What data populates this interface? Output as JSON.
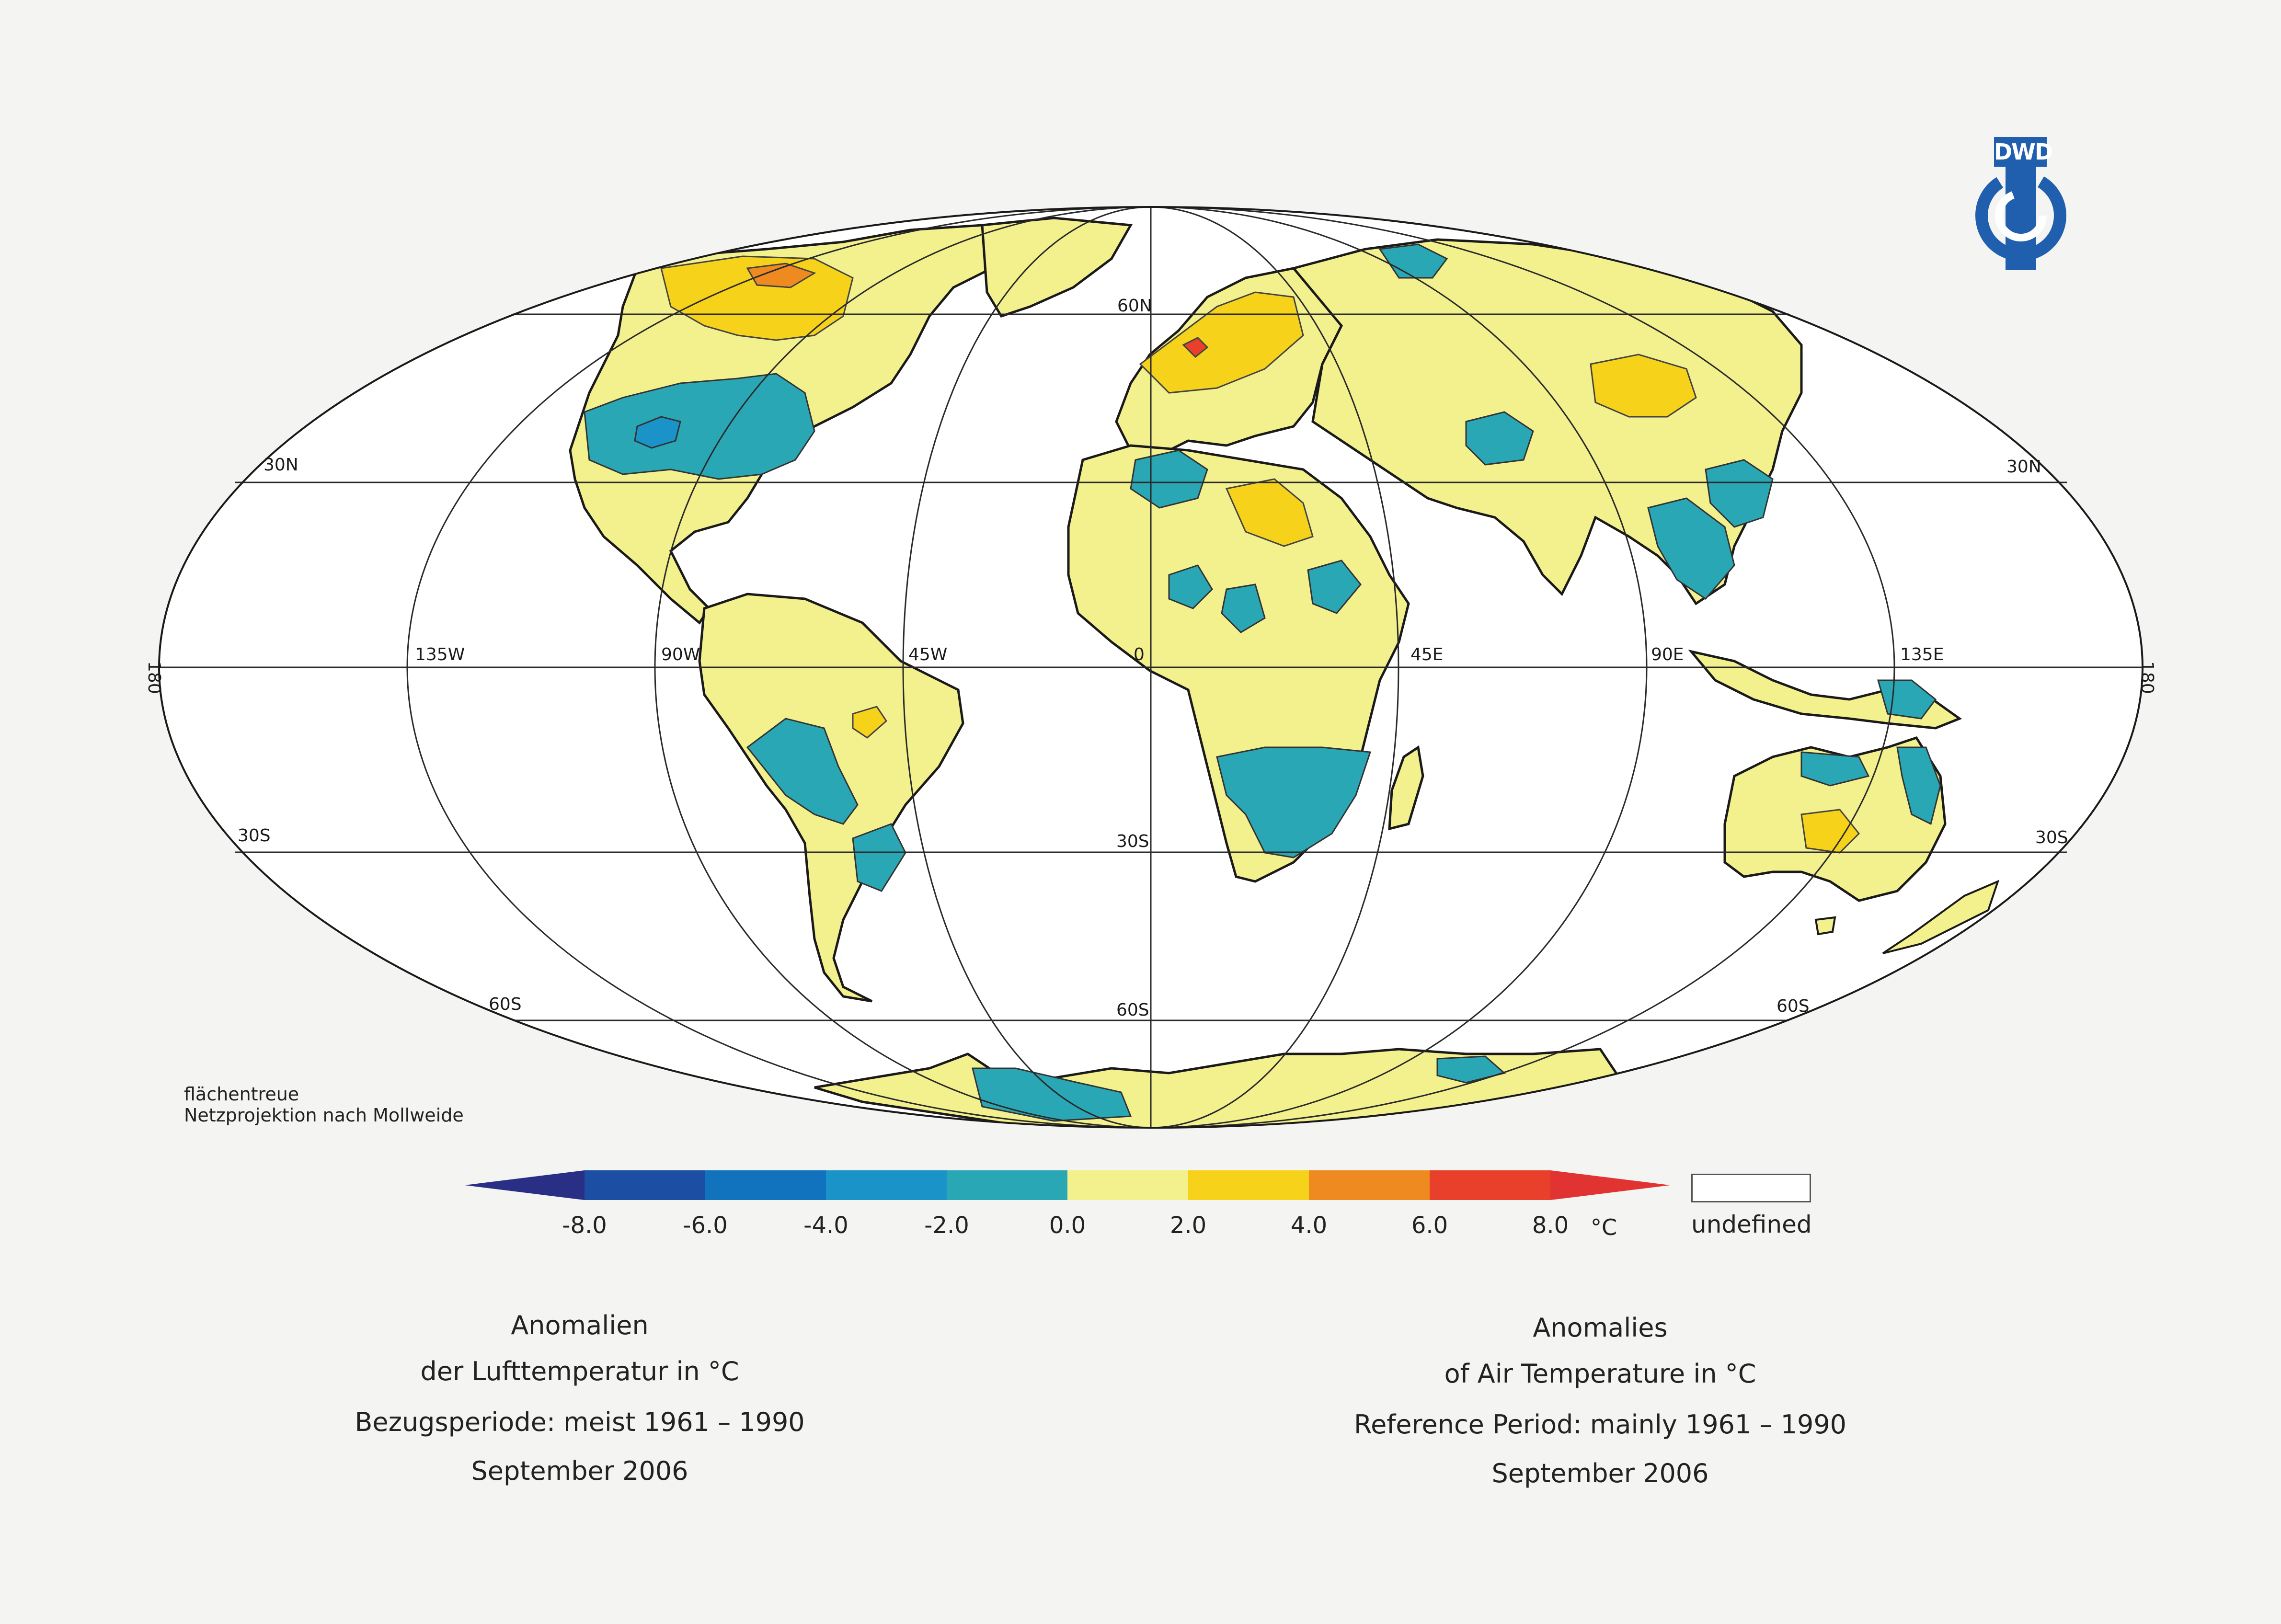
{
  "logo": {
    "text": "DWD",
    "color": "#1f5fae"
  },
  "projection_note": {
    "line1": "flächentreue",
    "line2": "Netzprojektion nach Mollweide"
  },
  "graticule_labels": {
    "lon_180_left": "180",
    "lon_135W": "135W",
    "lon_90W": "90W",
    "lon_45W": "45W",
    "lon_0": "0",
    "lon_45E": "45E",
    "lon_90E": "90E",
    "lon_135E": "135E",
    "lon_180_right": "180",
    "lat_60N": "60N",
    "lat_30N_left": "30N",
    "lat_30N_right": "30N",
    "lat_30S_left": "30S",
    "lat_30S_mid": "30S",
    "lat_30S_right": "30S",
    "lat_60S_left": "60S",
    "lat_60S_mid": "60S",
    "lat_60S_right": "60S"
  },
  "legend": {
    "ticks": [
      "-8.0",
      "-6.0",
      "-4.0",
      "-2.0",
      "0.0",
      "2.0",
      "4.0",
      "6.0",
      "8.0"
    ],
    "unit": "°C",
    "undefined_label": "undefined",
    "colors": {
      "below_-8": "#2a2f86",
      "-8_-6": "#1c4fa3",
      "-6_-4": "#1173bd",
      "-4_-2": "#1a93c8",
      "-2_0": "#2aa7b5",
      "0_2": "#f3f08e",
      "2_4": "#f6d21a",
      "4_6": "#ef8a21",
      "6_8": "#e8402a",
      "above_8": "#e13332"
    }
  },
  "title_de": {
    "line1": "Anomalien",
    "line2": "der Lufttemperatur in °C",
    "line3": "Bezugsperiode: meist 1961 – 1990",
    "line4": "September 2006"
  },
  "title_en": {
    "line1": "Anomalies",
    "line2": "of Air Temperature in °C",
    "line3": "Reference Period: mainly 1961 – 1990",
    "line4": "September 2006"
  }
}
